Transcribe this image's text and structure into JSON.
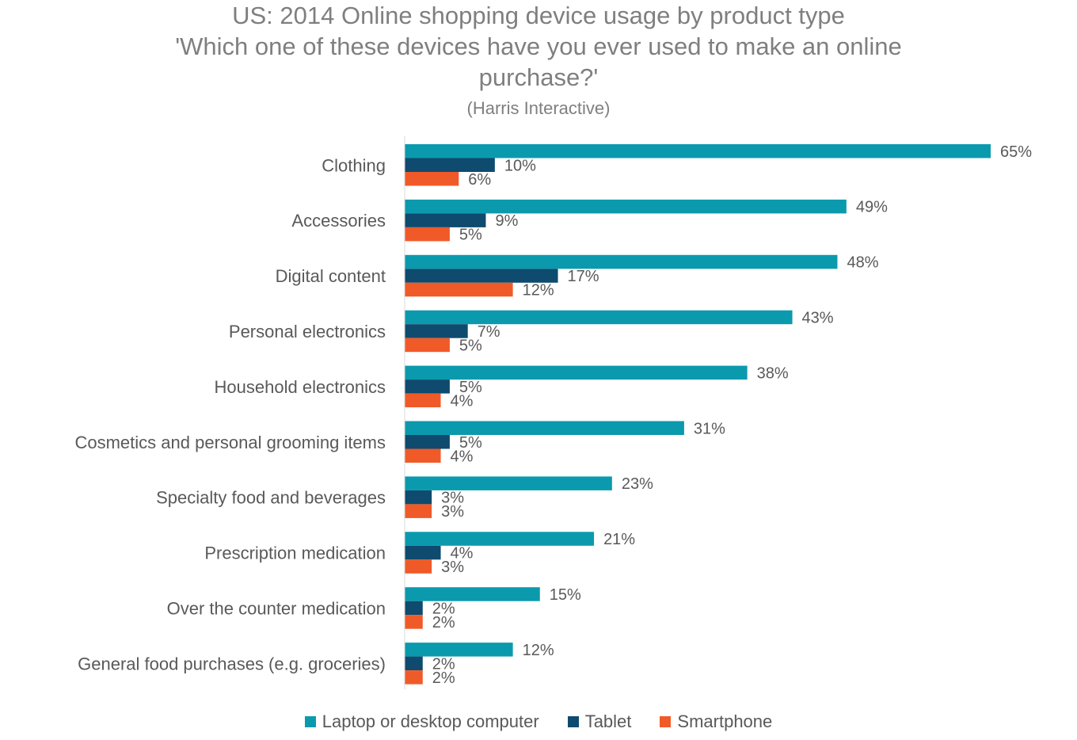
{
  "title": {
    "line1": "US: 2014 Online shopping device usage by product type",
    "line2": "'Which one of these devices have you ever used to make an online",
    "line3": "purchase?'",
    "source": "(Harris Interactive)"
  },
  "chart_data": {
    "type": "bar",
    "orientation": "horizontal",
    "title": "US: 2014 Online shopping device usage by product type 'Which one of these devices have you ever used to make an online purchase?'",
    "subtitle": "(Harris Interactive)",
    "categories": [
      "Clothing",
      "Accessories",
      "Digital content",
      "Personal electronics",
      "Household electronics",
      "Cosmetics and personal grooming items",
      "Specialty food and beverages",
      "Prescription medication",
      "Over the counter medication",
      "General food purchases (e.g. groceries)"
    ],
    "series": [
      {
        "name": "Laptop or desktop computer",
        "color": "#0b9aad",
        "values": [
          65,
          49,
          48,
          43,
          38,
          31,
          23,
          21,
          15,
          12
        ]
      },
      {
        "name": "Tablet",
        "color": "#0e4b6e",
        "values": [
          10,
          9,
          17,
          7,
          5,
          5,
          3,
          4,
          2,
          2
        ]
      },
      {
        "name": "Smartphone",
        "color": "#f05a28",
        "values": [
          6,
          5,
          12,
          5,
          4,
          4,
          3,
          3,
          2,
          2
        ]
      }
    ],
    "value_suffix": "%",
    "xlim": [
      0,
      65
    ],
    "grid": false,
    "legend_position": "bottom"
  }
}
